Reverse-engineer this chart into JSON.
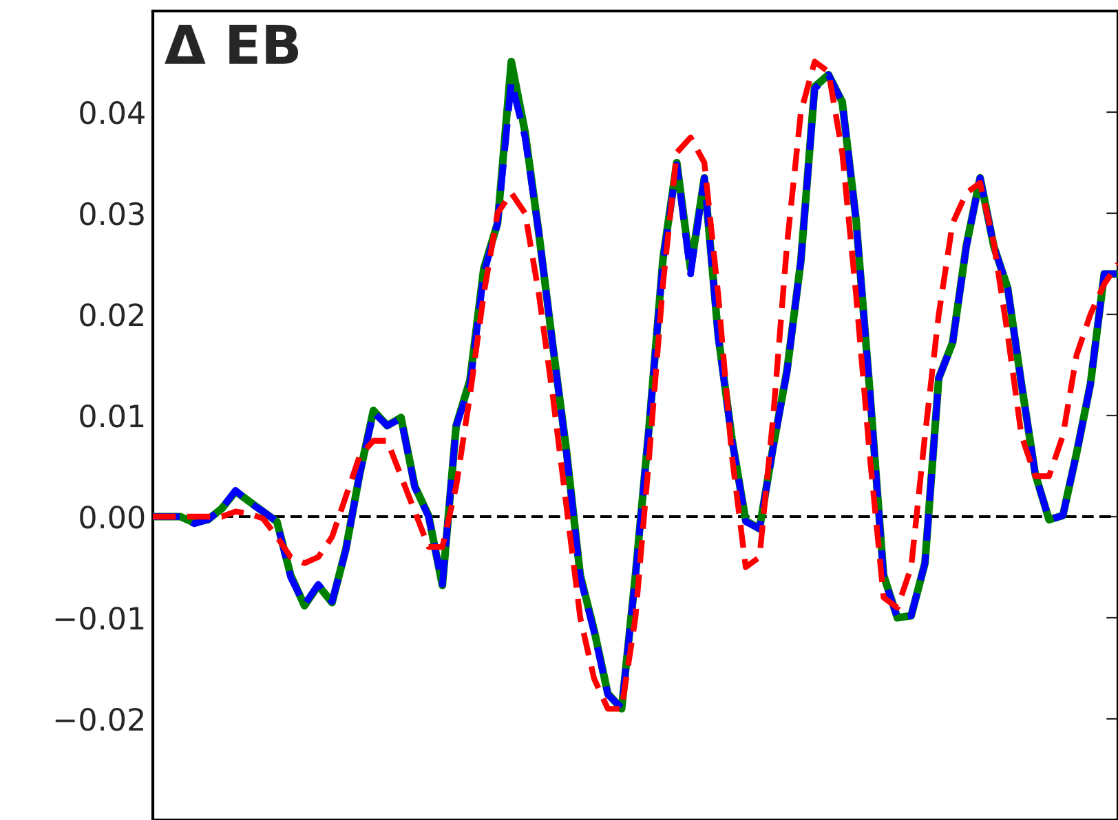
{
  "chart_data": {
    "type": "line",
    "annotations": [
      "Δ EB"
    ],
    "categories": [
      null,
      null,
      null,
      null,
      null,
      null,
      null,
      null,
      null,
      null,
      null,
      null,
      null,
      null,
      null,
      null,
      null,
      null,
      null,
      null,
      null,
      null,
      null,
      null,
      null,
      null,
      null,
      null,
      null,
      null,
      null,
      null,
      null,
      null,
      null,
      null,
      null,
      null,
      null,
      null,
      null,
      null,
      null,
      null,
      null,
      null,
      null,
      null,
      null,
      null,
      null,
      null,
      null,
      null,
      null,
      null,
      null,
      null,
      null,
      null,
      null,
      null,
      null,
      null,
      null,
      null,
      null,
      null,
      null,
      null,
      null
    ],
    "series": [
      {
        "color": "#008000",
        "line_style": "solid",
        "values": [
          0,
          0,
          0,
          -0.0006,
          -0.0003,
          0.0008,
          0.0025,
          0.0015,
          0.0005,
          -0.0005,
          -0.0058,
          -0.0088,
          -0.0068,
          -0.0085,
          -0.0032,
          0.0042,
          0.0105,
          0.009,
          0.0098,
          0.003,
          0.0001,
          -0.0068,
          0.009,
          0.0135,
          0.0245,
          0.029,
          0.045,
          0.038,
          0.028,
          0.017,
          0.0065,
          -0.0058,
          -0.0112,
          -0.0175,
          -0.019,
          -0.0058,
          0.009,
          0.0255,
          0.035,
          0.0245,
          0.0335,
          0.018,
          0.0077,
          -0.0004,
          -0.0012,
          0.007,
          0.0145,
          0.0253,
          0.0425,
          0.0437,
          0.041,
          0.0294,
          0.0124,
          -0.0058,
          -0.01,
          -0.0098,
          -0.0046,
          0.0137,
          0.0172,
          0.0268,
          0.0335,
          0.0267,
          0.0226,
          0.0131,
          0.0042,
          -0.0003,
          0.0001,
          0.0063,
          0.0131,
          0.024,
          0.024
        ]
      },
      {
        "color": "#0000ff",
        "line_style": "dashed",
        "values": [
          0,
          0,
          0,
          -0.0007,
          -0.0003,
          0.0008,
          0.0026,
          0.0014,
          0.0005,
          -0.0005,
          -0.006,
          -0.0087,
          -0.0067,
          -0.0084,
          -0.0033,
          0.0042,
          0.0103,
          0.009,
          0.0097,
          0.0029,
          0,
          -0.0067,
          0.009,
          0.013,
          0.024,
          0.029,
          0.043,
          0.0375,
          0.028,
          0.017,
          0.0063,
          -0.006,
          -0.0114,
          -0.0176,
          -0.0189,
          -0.006,
          0.009,
          0.0253,
          0.0348,
          0.024,
          0.0335,
          0.0178,
          0.0076,
          -0.0005,
          -0.0012,
          0.0069,
          0.0144,
          0.0253,
          0.0423,
          0.0437,
          0.041,
          0.0294,
          0.0124,
          -0.006,
          -0.01,
          -0.0098,
          -0.0046,
          0.0137,
          0.0171,
          0.0267,
          0.0335,
          0.0267,
          0.0226,
          0.0131,
          0.0042,
          -0.0003,
          0.0001,
          0.0063,
          0.0131,
          0.024,
          0.024
        ]
      },
      {
        "color": "#ff0000",
        "line_style": "dashed",
        "values": [
          0,
          0,
          0,
          0,
          0,
          0,
          0.0005,
          0.0003,
          -0.0002,
          -0.002,
          -0.004,
          -0.0046,
          -0.004,
          -0.002,
          0.002,
          0.006,
          0.0075,
          0.0075,
          0.004,
          0.0005,
          -0.003,
          -0.003,
          0.003,
          0.012,
          0.022,
          0.03,
          0.032,
          0.03,
          0.022,
          0.012,
          0.001,
          -0.01,
          -0.016,
          -0.019,
          -0.019,
          -0.01,
          0.006,
          0.023,
          0.036,
          0.0375,
          0.035,
          0.022,
          0.006,
          -0.005,
          -0.004,
          0.01,
          0.027,
          0.04,
          0.045,
          0.044,
          0.036,
          0.022,
          0.006,
          -0.008,
          -0.009,
          -0.005,
          0.008,
          0.02,
          0.029,
          0.032,
          0.033,
          0.027,
          0.018,
          0.008,
          0.004,
          0.004,
          0.008,
          0.016,
          0.02,
          0.023,
          0.025
        ]
      }
    ],
    "ylim": [
      -0.03,
      0.05
    ],
    "yticks": [
      {
        "value": -0.02,
        "label": "−0.02"
      },
      {
        "value": -0.01,
        "label": "−0.01"
      },
      {
        "value": 0,
        "label": "0.00"
      },
      {
        "value": 0.01,
        "label": "0.01"
      },
      {
        "value": 0.02,
        "label": "0.02"
      },
      {
        "value": 0.03,
        "label": "0.03"
      },
      {
        "value": 0.04,
        "label": "0.04"
      }
    ],
    "ref_lines": [
      {
        "axis": "y",
        "value": 0,
        "color": "#000000",
        "line_style": "dashed"
      }
    ],
    "tick_labels": "y"
  }
}
